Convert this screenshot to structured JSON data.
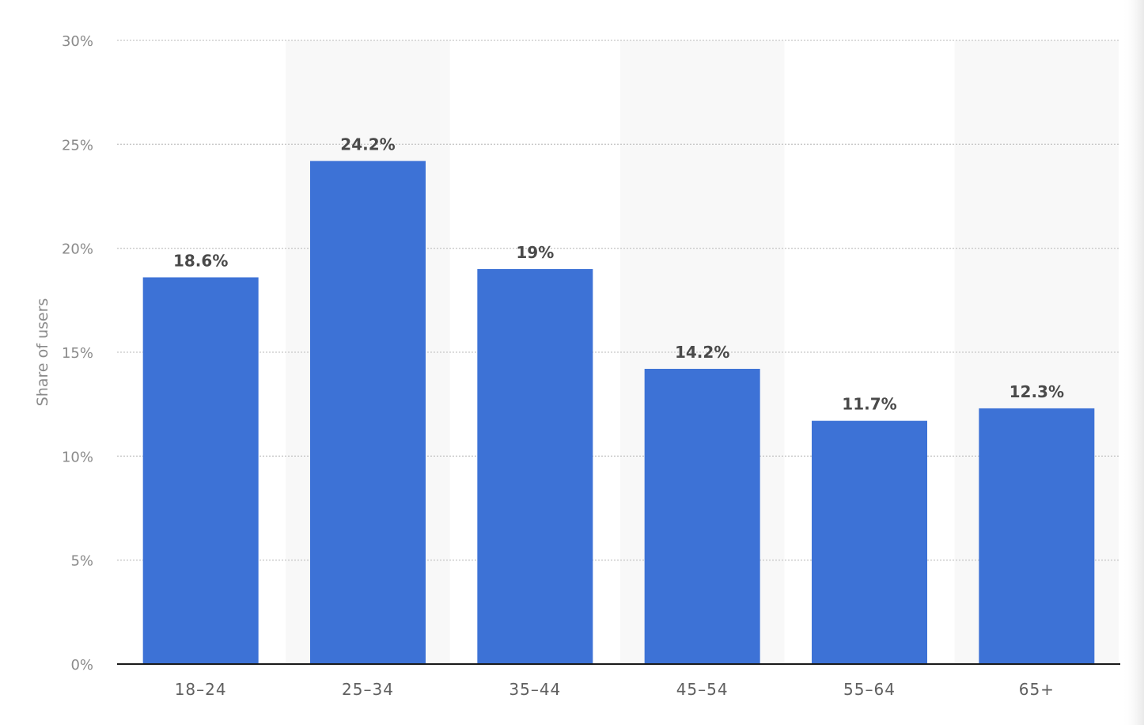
{
  "chart_data": {
    "type": "bar",
    "categories": [
      "18-24",
      "25-34",
      "35-44",
      "45-54",
      "55-64",
      "65+"
    ],
    "values": [
      18.6,
      24.2,
      19,
      14.2,
      11.7,
      12.3
    ],
    "value_labels": [
      "18.6%",
      "24.2%",
      "19%",
      "14.2%",
      "11.7%",
      "12.3%"
    ],
    "title": "",
    "xlabel": "",
    "ylabel": "Share of users",
    "ylim": [
      0,
      30
    ],
    "yticks": [
      0,
      5,
      10,
      15,
      20,
      25,
      30
    ],
    "ytick_labels": [
      "0%",
      "5%",
      "10%",
      "15%",
      "20%",
      "25%",
      "30%"
    ],
    "grid": true,
    "legend": "none",
    "bar_color": "#3d72d6"
  }
}
